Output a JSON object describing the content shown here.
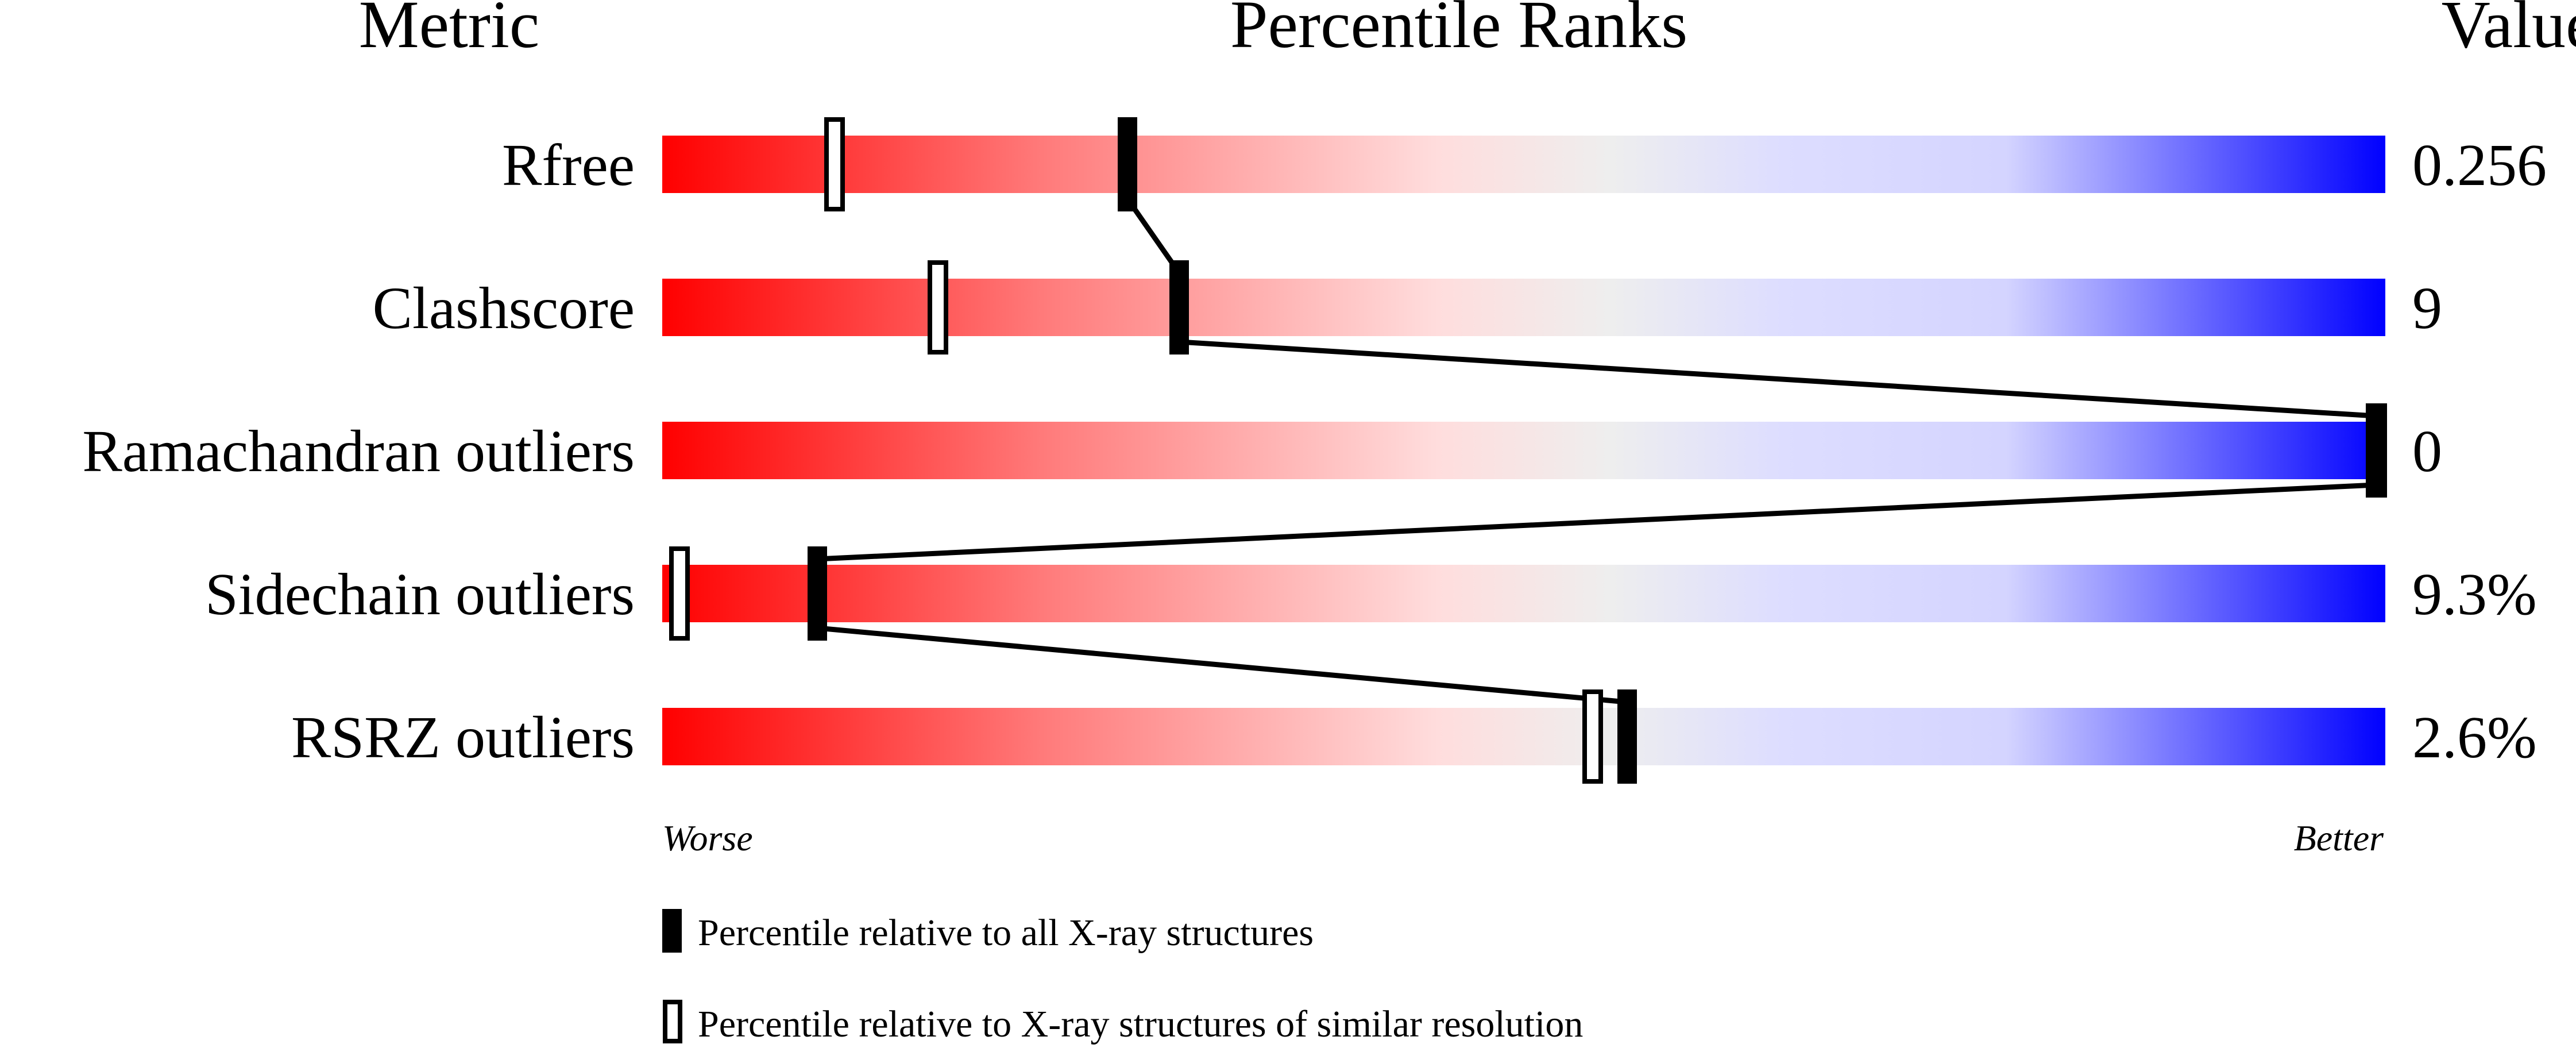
{
  "chart_data": {
    "type": "percentile-slider",
    "headers": {
      "metric": "Metric",
      "ranks": "Percentile Ranks",
      "value": "Value"
    },
    "xlim": [
      0,
      100
    ],
    "axis_ends": {
      "left": "Worse",
      "right": "Better"
    },
    "gradient_colors": [
      "#ff0000",
      "#ff8080",
      "#ffdddd",
      "#eeeeee",
      "#ddddff",
      "#0000ff"
    ],
    "metrics": [
      {
        "name": "Rfree",
        "value": "0.256",
        "percentile_all": 27,
        "percentile_similar": 10
      },
      {
        "name": "Clashscore",
        "value": "9",
        "percentile_all": 30,
        "percentile_similar": 16
      },
      {
        "name": "Ramachandran outliers",
        "value": "0",
        "percentile_all": 100,
        "percentile_similar": 100
      },
      {
        "name": "Sidechain outliers",
        "value": "9.3%",
        "percentile_all": 9,
        "percentile_similar": 1
      },
      {
        "name": "RSRZ outliers",
        "value": "2.6%",
        "percentile_all": 56,
        "percentile_similar": 54
      }
    ],
    "legend": [
      {
        "marker": "filled",
        "label": "Percentile relative to all X-ray structures"
      },
      {
        "marker": "open",
        "label": "Percentile relative to X-ray structures of similar resolution"
      }
    ]
  }
}
